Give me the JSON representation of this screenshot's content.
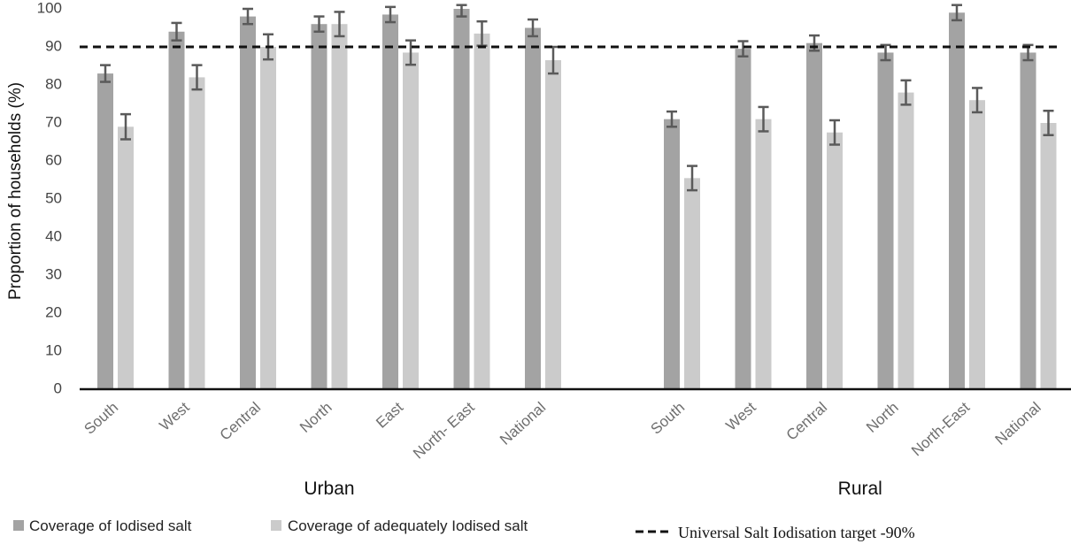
{
  "chart_data": {
    "type": "bar",
    "ylabel": "Proportion of households (%)",
    "ylim": [
      0,
      100
    ],
    "yticks": [
      0,
      10,
      20,
      30,
      40,
      50,
      60,
      70,
      80,
      90,
      100
    ],
    "grid": false,
    "legend_position": "bottom",
    "groups": [
      {
        "name": "Urban",
        "categories": [
          "South",
          "West",
          "Central",
          "North",
          "East",
          "North- East",
          "National"
        ],
        "series": [
          {
            "name": "Coverage of Iodised salt",
            "values": [
              83,
              94,
              98,
              96,
              98.5,
              100,
              95
            ],
            "error": [
              2.2,
              2.3,
              2,
              2,
              2,
              2,
              2.2
            ]
          },
          {
            "name": "Coverage of adequately Iodised salt",
            "values": [
              69,
              82,
              90,
              96,
              88.5,
              93.5,
              86.5
            ],
            "error": [
              3.3,
              3.2,
              3.3,
              3.2,
              3.2,
              3.2,
              3.5
            ]
          }
        ]
      },
      {
        "name": "Rural",
        "categories": [
          "South",
          "West",
          "Central",
          "North",
          "North-East",
          "National"
        ],
        "series": [
          {
            "name": "Coverage of Iodised salt",
            "values": [
              71,
              89.5,
              91,
              88.5,
              99,
              88.5
            ],
            "error": [
              2,
              2,
              2,
              2,
              2,
              2
            ]
          },
          {
            "name": "Coverage of adequately Iodised salt",
            "values": [
              55.5,
              71,
              67.5,
              78,
              76,
              70
            ],
            "error": [
              3.2,
              3.2,
              3.2,
              3.2,
              3.2,
              3.2
            ]
          }
        ]
      }
    ],
    "reference_line": {
      "value": 90,
      "label": "Universal Salt Iodisation target -90%",
      "style": "dashed"
    },
    "colors": {
      "series1": "#a3a3a3",
      "series2": "#cbcbcb",
      "error": "#5a5a5a",
      "axis": "#111111",
      "reference": "#111111"
    }
  },
  "legend": {
    "items": [
      {
        "label": "Coverage of Iodised salt"
      },
      {
        "label": "Coverage of adequately Iodised salt"
      },
      {
        "label": "Universal Salt Iodisation target -90%"
      }
    ]
  }
}
